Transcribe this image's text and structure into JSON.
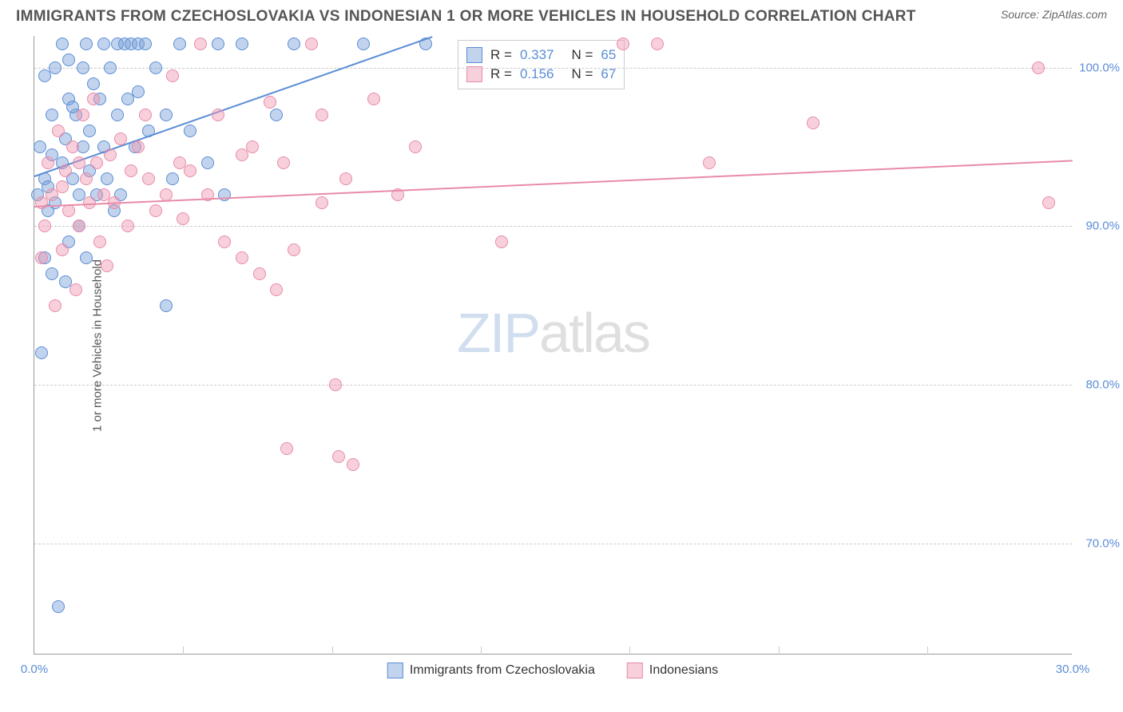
{
  "title": "IMMIGRANTS FROM CZECHOSLOVAKIA VS INDONESIAN 1 OR MORE VEHICLES IN HOUSEHOLD CORRELATION CHART",
  "source": "Source: ZipAtlas.com",
  "watermark_a": "ZIP",
  "watermark_b": "atlas",
  "chart": {
    "type": "scatter",
    "y_axis_label": "1 or more Vehicles in Household",
    "xlim": [
      0,
      30
    ],
    "ylim": [
      63,
      102
    ],
    "y_ticks": [
      70,
      80,
      90,
      100
    ],
    "y_tick_labels": [
      "70.0%",
      "80.0%",
      "90.0%",
      "100.0%"
    ],
    "x_ticks": [
      0,
      30
    ],
    "x_tick_labels": [
      "0.0%",
      "30.0%"
    ],
    "x_minor_ticks": [
      4.3,
      8.6,
      12.9,
      17.2,
      21.5,
      25.8
    ],
    "grid_color": "#cccccc",
    "background_color": "#ffffff",
    "series": [
      {
        "name": "Immigrants from Czechoslovakia",
        "color_fill": "rgba(120,160,215,0.45)",
        "color_stroke": "#5b8dd6",
        "point_radius": 8,
        "r_value": "0.337",
        "n_value": "65",
        "trend_start": [
          0,
          93.2
        ],
        "trend_end": [
          11.5,
          102
        ],
        "points": [
          [
            0.1,
            92
          ],
          [
            0.3,
            93
          ],
          [
            0.5,
            97
          ],
          [
            0.6,
            100
          ],
          [
            0.8,
            101.5
          ],
          [
            1.0,
            98
          ],
          [
            1.2,
            97
          ],
          [
            1.4,
            95
          ],
          [
            1.5,
            101.5
          ],
          [
            1.7,
            99
          ],
          [
            2.0,
            101.5
          ],
          [
            2.2,
            100
          ],
          [
            2.4,
            101.5
          ],
          [
            2.6,
            101.5
          ],
          [
            2.8,
            101.5
          ],
          [
            3.0,
            101.5
          ],
          [
            3.2,
            101.5
          ],
          [
            0.4,
            91
          ],
          [
            0.6,
            91.5
          ],
          [
            0.8,
            94
          ],
          [
            1.1,
            93
          ],
          [
            1.3,
            92
          ],
          [
            1.6,
            96
          ],
          [
            1.9,
            98
          ],
          [
            2.1,
            93
          ],
          [
            2.3,
            91
          ],
          [
            2.5,
            92
          ],
          [
            0.3,
            88
          ],
          [
            0.5,
            87
          ],
          [
            0.9,
            86.5
          ],
          [
            3.8,
            85
          ],
          [
            0.2,
            82
          ],
          [
            0.7,
            66
          ],
          [
            1.5,
            88
          ],
          [
            1.0,
            89
          ],
          [
            2.0,
            95
          ],
          [
            2.7,
            98
          ],
          [
            3.5,
            100
          ],
          [
            3.8,
            97
          ],
          [
            4.2,
            101.5
          ],
          [
            5.3,
            101.5
          ],
          [
            5.0,
            94
          ],
          [
            5.5,
            92
          ],
          [
            6.0,
            101.5
          ],
          [
            7.0,
            97
          ],
          [
            7.5,
            101.5
          ],
          [
            9.5,
            101.5
          ],
          [
            11.3,
            101.5
          ],
          [
            0.5,
            94.5
          ],
          [
            0.9,
            95.5
          ],
          [
            1.3,
            90
          ],
          [
            2.4,
            97
          ],
          [
            3.0,
            98.5
          ],
          [
            1.8,
            92
          ],
          [
            0.3,
            99.5
          ],
          [
            1.0,
            100.5
          ],
          [
            1.4,
            100
          ],
          [
            2.9,
            95
          ],
          [
            3.3,
            96
          ],
          [
            4.0,
            93
          ],
          [
            4.5,
            96
          ],
          [
            1.1,
            97.5
          ],
          [
            1.6,
            93.5
          ],
          [
            0.15,
            95
          ],
          [
            0.4,
            92.5
          ]
        ]
      },
      {
        "name": "Indonesians",
        "color_fill": "rgba(240,150,175,0.45)",
        "color_stroke": "#e88ba8",
        "point_radius": 8,
        "r_value": "0.156",
        "n_value": "67",
        "trend_start": [
          0,
          91.3
        ],
        "trend_end": [
          30,
          94.2
        ],
        "points": [
          [
            0.2,
            91.5
          ],
          [
            0.5,
            92
          ],
          [
            0.8,
            92.5
          ],
          [
            1.0,
            91
          ],
          [
            1.3,
            90
          ],
          [
            1.5,
            93
          ],
          [
            1.8,
            94
          ],
          [
            2.0,
            92
          ],
          [
            2.3,
            91.5
          ],
          [
            2.7,
            90
          ],
          [
            3.0,
            95
          ],
          [
            3.3,
            93
          ],
          [
            3.8,
            92
          ],
          [
            4.2,
            94
          ],
          [
            4.5,
            93.5
          ],
          [
            5.0,
            92
          ],
          [
            5.5,
            89
          ],
          [
            6.0,
            88
          ],
          [
            6.5,
            87
          ],
          [
            7.0,
            86
          ],
          [
            7.5,
            88.5
          ],
          [
            8.0,
            101.5
          ],
          [
            8.3,
            91.5
          ],
          [
            8.7,
            80
          ],
          [
            9.0,
            93
          ],
          [
            8.8,
            75.5
          ],
          [
            9.2,
            75
          ],
          [
            9.8,
            98
          ],
          [
            10.5,
            92
          ],
          [
            11.0,
            95
          ],
          [
            13.5,
            89
          ],
          [
            17.0,
            101.5
          ],
          [
            18.0,
            101.5
          ],
          [
            19.5,
            94
          ],
          [
            22.5,
            96.5
          ],
          [
            29.0,
            100
          ],
          [
            29.3,
            91.5
          ],
          [
            0.4,
            94
          ],
          [
            0.7,
            96
          ],
          [
            1.1,
            95
          ],
          [
            1.4,
            97
          ],
          [
            1.7,
            98
          ],
          [
            0.6,
            85
          ],
          [
            1.2,
            86
          ],
          [
            2.5,
            95.5
          ],
          [
            3.2,
            97
          ],
          [
            4.0,
            99.5
          ],
          [
            4.8,
            101.5
          ],
          [
            5.3,
            97
          ],
          [
            6.3,
            95
          ],
          [
            7.2,
            94
          ],
          [
            1.9,
            89
          ],
          [
            2.1,
            87.5
          ],
          [
            2.8,
            93.5
          ],
          [
            3.5,
            91
          ],
          [
            4.3,
            90.5
          ],
          [
            6.0,
            94.5
          ],
          [
            0.2,
            88
          ],
          [
            0.9,
            93.5
          ],
          [
            1.6,
            91.5
          ],
          [
            2.2,
            94.5
          ],
          [
            0.3,
            90
          ],
          [
            0.8,
            88.5
          ],
          [
            1.3,
            94
          ],
          [
            7.3,
            76
          ],
          [
            6.8,
            97.8
          ],
          [
            8.3,
            97
          ]
        ]
      }
    ],
    "legend_labels": [
      "Immigrants from Czechoslovakia",
      "Indonesians"
    ]
  }
}
